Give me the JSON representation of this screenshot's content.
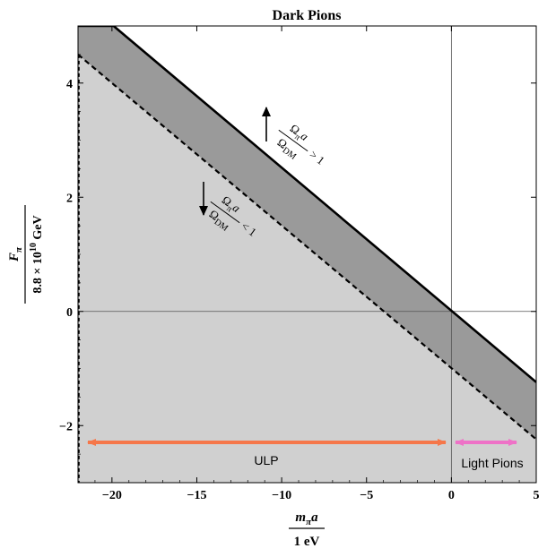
{
  "chart_data": {
    "type": "area",
    "title": "Dark Pions",
    "xlabel": {
      "numerator": "m",
      "numerator_sub": "π",
      "numerator_tail": "a",
      "denominator": "1 eV"
    },
    "ylabel": {
      "numerator": "F",
      "numerator_sub": "π",
      "denominator_pre": "8.8 × 10",
      "denominator_sup": "10",
      "denominator_post": " GeV"
    },
    "xlim": [
      -22,
      5
    ],
    "ylim": [
      -3,
      5
    ],
    "xticks": [
      -20,
      -15,
      -10,
      -5,
      0,
      5
    ],
    "xtick_labels": [
      "−20",
      "−15",
      "−10",
      "−5",
      "0",
      "5"
    ],
    "yticks": [
      -2,
      0,
      2,
      4
    ],
    "ytick_labels": [
      "−2",
      "0",
      "2",
      "4"
    ],
    "grid": false,
    "series": [
      {
        "style": "solid",
        "color": "#000000",
        "x": [
          -22,
          -19.9,
          5
        ],
        "y": [
          5,
          5,
          -1.24
        ]
      },
      {
        "style": "dashed",
        "color": "#000000",
        "x": [
          -22,
          5
        ],
        "y": [
          4.5,
          -2.24
        ]
      }
    ],
    "regions": [
      {
        "fill": "#9a9a9a",
        "between": "solid-dashed"
      },
      {
        "fill": "#d0d0d0",
        "below": "dashed"
      }
    ],
    "reference_lines": {
      "x": 0,
      "y": 0
    },
    "annotations": {
      "upper": {
        "num": "Ω",
        "num_sub": "π",
        "num_tail": "a",
        "den": "Ω",
        "den_sub": "DM",
        "rel": "> 1"
      },
      "lower": {
        "num": "Ω",
        "num_sub": "π",
        "num_tail": "a",
        "den": "Ω",
        "den_sub": "DM",
        "rel": "< 1"
      }
    },
    "arrows": [
      {
        "label": "ULP",
        "x": [
          -22,
          0
        ],
        "y": -2.3,
        "color": "#f5774a"
      },
      {
        "label": "Light Pions",
        "x": [
          0.2,
          4
        ],
        "y": -2.3,
        "color": "#ee72c7"
      }
    ],
    "colors": {
      "band": "#9a9a9a",
      "below": "#d0d0d0",
      "ulp": "#f5774a",
      "light_pions": "#ee72c7"
    }
  }
}
